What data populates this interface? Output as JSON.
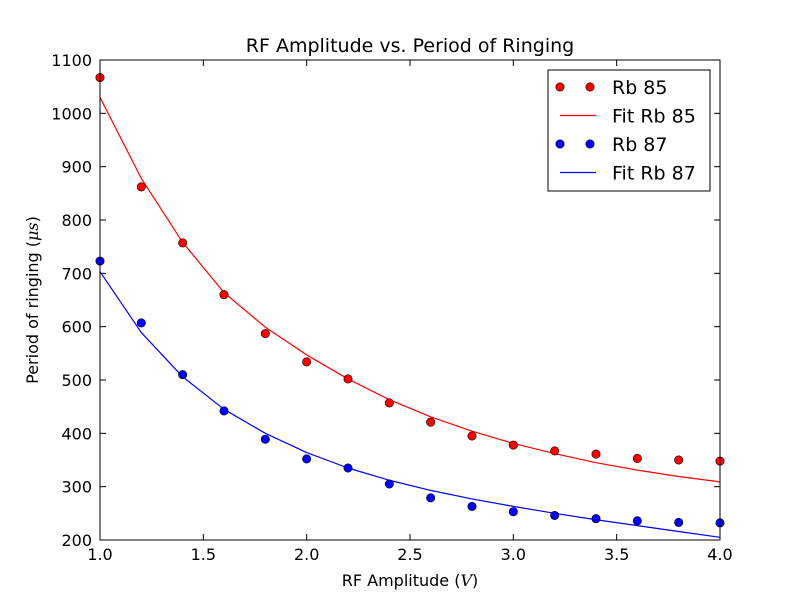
{
  "chart_data": {
    "type": "scatter",
    "title": "RF Amplitude vs. Period of Ringing",
    "xlabel": "RF Amplitude",
    "xlabel_unit": "V",
    "ylabel": "Period of ringing",
    "ylabel_unit": "μs",
    "xlim": [
      1.0,
      4.0
    ],
    "ylim": [
      200,
      1100
    ],
    "xticks": [
      "1.0",
      "1.5",
      "2.0",
      "2.5",
      "3.0",
      "3.5",
      "4.0"
    ],
    "yticks": [
      "200",
      "300",
      "400",
      "500",
      "600",
      "700",
      "800",
      "900",
      "1000",
      "1100"
    ],
    "grid": false,
    "legend_position": "top-right",
    "series": [
      {
        "name": "Rb 85",
        "kind": "points",
        "color": "#ff0000",
        "x": [
          1.0,
          1.2,
          1.4,
          1.6,
          1.8,
          2.0,
          2.2,
          2.4,
          2.6,
          2.8,
          3.0,
          3.2,
          3.4,
          3.6,
          3.8,
          4.0
        ],
        "y": [
          1067,
          862,
          757,
          660,
          587,
          534,
          502,
          457,
          421,
          395,
          378,
          367,
          361,
          353,
          350,
          348
        ]
      },
      {
        "name": "Fit Rb 85",
        "kind": "line",
        "color": "#ff0000",
        "x": [
          1.0,
          1.2,
          1.4,
          1.6,
          1.8,
          2.0,
          2.2,
          2.4,
          2.6,
          2.8,
          3.0,
          3.2,
          3.4,
          3.6,
          3.8,
          4.0
        ],
        "y": [
          1030,
          878,
          758,
          664,
          599,
          547,
          502,
          463,
          431,
          404,
          381,
          362,
          345,
          331,
          319,
          309
        ]
      },
      {
        "name": "Rb 87",
        "kind": "points",
        "color": "#0000ff",
        "x": [
          1.0,
          1.2,
          1.4,
          1.6,
          1.8,
          2.0,
          2.2,
          2.4,
          2.6,
          2.8,
          3.0,
          3.2,
          3.4,
          3.6,
          3.8,
          4.0
        ],
        "y": [
          723,
          607,
          510,
          442,
          389,
          352,
          335,
          305,
          279,
          263,
          253,
          246,
          240,
          236,
          233,
          232
        ]
      },
      {
        "name": "Fit Rb 87",
        "kind": "line",
        "color": "#0000ff",
        "x": [
          1.0,
          1.2,
          1.4,
          1.6,
          1.8,
          2.0,
          2.2,
          2.4,
          2.6,
          2.8,
          3.0,
          3.2,
          3.4,
          3.6,
          3.8,
          4.0
        ],
        "y": [
          703,
          589,
          506,
          445,
          400,
          364,
          335,
          312,
          293,
          277,
          263,
          250,
          238,
          227,
          216,
          205
        ]
      }
    ]
  }
}
